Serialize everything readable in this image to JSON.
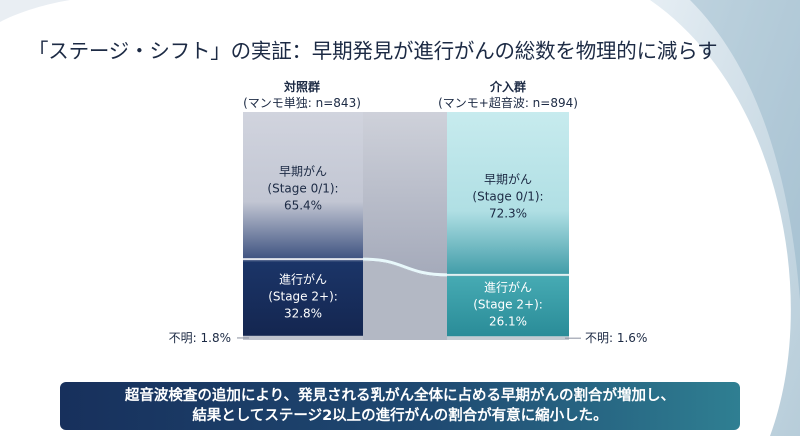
{
  "title": "「ステージ・シフト」の実証：早期発見が進行がんの総数を物理的に減らす",
  "chart_data": {
    "type": "stacked-bar",
    "unit": "%",
    "ylim": [
      0,
      100
    ],
    "groups": [
      {
        "name": "対照群",
        "subtitle": "(マンモ単独: n=843)",
        "segments": [
          {
            "key": "early",
            "label": "早期がん",
            "sublabel": "(Stage 0/1):",
            "value": 65.4,
            "value_text": "65.4%"
          },
          {
            "key": "advanced",
            "label": "進行がん",
            "sublabel": "(Stage 2+):",
            "value": 32.8,
            "value_text": "32.8%"
          },
          {
            "key": "unknown",
            "label": "不明",
            "value": 1.8,
            "value_text": "不明: 1.8%"
          }
        ]
      },
      {
        "name": "介入群",
        "subtitle": "(マンモ+超音波: n=894)",
        "segments": [
          {
            "key": "early",
            "label": "早期がん",
            "sublabel": "(Stage 0/1):",
            "value": 72.3,
            "value_text": "72.3%"
          },
          {
            "key": "advanced",
            "label": "進行がん",
            "sublabel": "(Stage 2+):",
            "value": 26.1,
            "value_text": "26.1%"
          },
          {
            "key": "unknown",
            "label": "不明",
            "value": 1.6,
            "value_text": "不明: 1.6%"
          }
        ]
      }
    ]
  },
  "banner": {
    "line1": "超音波検査の追加により、発見される乳がん全体に占める早期がんの割合が増加し、",
    "line2": "結果としてステージ2以上の進行がんの割合が有意に縮小した。"
  },
  "colors": {
    "control_early": "#c9cdd9",
    "control_advanced": "#162c5a",
    "intervention_early": "#bfe7ea",
    "intervention_advanced": "#2f9aa5",
    "connector": "#c4c8d2",
    "banner_start": "#17305c",
    "banner_end": "#2f7f92"
  }
}
